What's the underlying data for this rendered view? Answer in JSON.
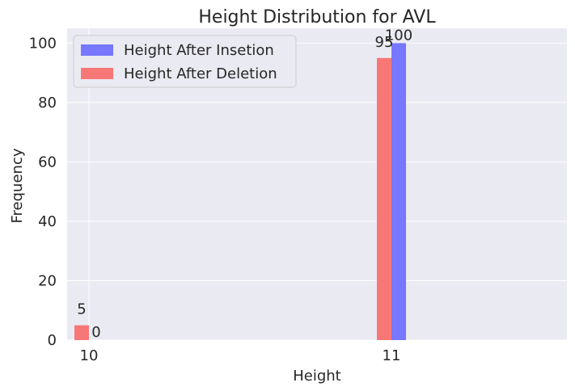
{
  "chart_data": {
    "type": "bar",
    "title": "Height Distribution for AVL",
    "xlabel": "Height",
    "ylabel": "Frequency",
    "x_ticks": [
      "10",
      "11"
    ],
    "y_ticks": [
      "0",
      "20",
      "40",
      "60",
      "80",
      "100"
    ],
    "ylim": [
      0,
      105
    ],
    "grid": true,
    "legend_position": "top-left",
    "series": [
      {
        "name": "Height After Insetion",
        "color": "#7777ff",
        "x": [
          10,
          11
        ],
        "values": [
          0,
          100
        ]
      },
      {
        "name": "Height After Deletion",
        "color": "#f77777",
        "x": [
          10,
          11
        ],
        "values": [
          5,
          95
        ]
      }
    ]
  }
}
